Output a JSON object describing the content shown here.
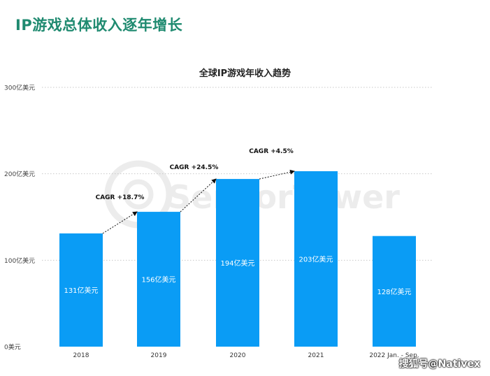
{
  "slide": {
    "title": "IP游戏总体收入逐年增长",
    "credit": "搜狐号@Nativex",
    "watermark": "SensorTower"
  },
  "colors": {
    "title": "#1f8a70",
    "bar": "#0a9cf5",
    "grid": "#c8c8c8",
    "annotation": "#111111"
  },
  "chart_data": {
    "type": "bar",
    "title": "全球IP游戏年收入趋势",
    "categories": [
      "2018",
      "2019",
      "2020",
      "2021",
      "2022 Jan. - Sep."
    ],
    "values": [
      131,
      156,
      194,
      203,
      128
    ],
    "data_labels": [
      "131亿美元",
      "156亿美元",
      "194亿美元",
      "203亿美元",
      "128亿美元"
    ],
    "yticks": [
      0,
      100,
      200,
      300
    ],
    "ytick_labels": [
      "0美元",
      "100亿美元",
      "200亿美元",
      "300亿美元"
    ],
    "ylim": [
      0,
      300
    ],
    "grid": true,
    "annotations": [
      {
        "from": 0,
        "to": 1,
        "text": "CAGR +18.7%"
      },
      {
        "from": 1,
        "to": 2,
        "text": "CAGR +24.5%"
      },
      {
        "from": 2,
        "to": 3,
        "text": "CAGR +4.5%"
      }
    ]
  }
}
